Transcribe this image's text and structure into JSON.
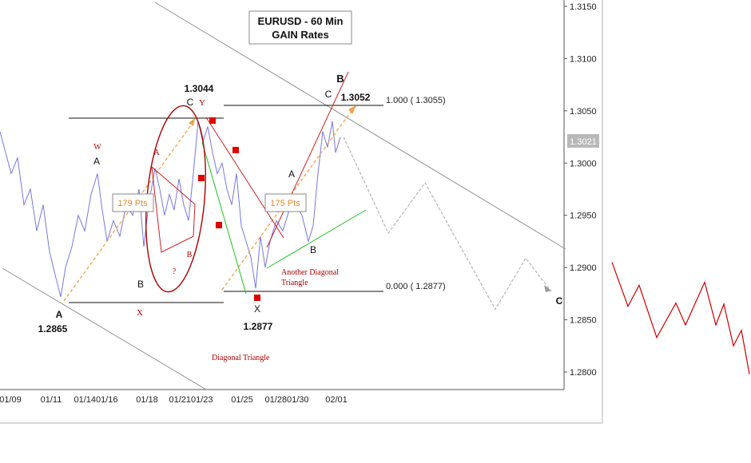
{
  "chart_data": {
    "type": "line",
    "title": "EURUSD - 60 Min",
    "subtitle": "GAIN Rates",
    "y_ticks": [
      "1.3150",
      "1.3100",
      "1.3050",
      "1.3000",
      "1.2950",
      "1.2900",
      "1.2850",
      "1.2800"
    ],
    "x_ticks": [
      "01/09",
      "01/11",
      "01/1401/16",
      "01/18",
      "01/2101/23",
      "01/25",
      "01/2801/30",
      "02/01"
    ],
    "last_price": "1.3021",
    "ylim": [
      1.277,
      1.316
    ],
    "grid": false,
    "price_series": [
      [
        0,
        1.303
      ],
      [
        14,
        1.299
      ],
      [
        22,
        1.3005
      ],
      [
        30,
        1.296
      ],
      [
        38,
        1.2975
      ],
      [
        46,
        1.2935
      ],
      [
        54,
        1.296
      ],
      [
        62,
        1.2915
      ],
      [
        70,
        1.289
      ],
      [
        76,
        1.2872
      ],
      [
        82,
        1.29
      ],
      [
        90,
        1.292
      ],
      [
        98,
        1.295
      ],
      [
        106,
        1.2935
      ],
      [
        114,
        1.297
      ],
      [
        122,
        1.299
      ],
      [
        128,
        1.2955
      ],
      [
        134,
        1.2925
      ],
      [
        142,
        1.2945
      ],
      [
        150,
        1.293
      ],
      [
        158,
        1.296
      ],
      [
        166,
        1.295
      ],
      [
        174,
        1.2975
      ],
      [
        180,
        1.292
      ],
      [
        186,
        1.296
      ],
      [
        194,
        1.2995
      ],
      [
        200,
        1.2975
      ],
      [
        206,
        1.295
      ],
      [
        212,
        1.297
      ],
      [
        218,
        1.2955
      ],
      [
        224,
        1.2985
      ],
      [
        230,
        1.296
      ],
      [
        236,
        1.2945
      ],
      [
        242,
        1.299
      ],
      [
        248,
        1.304
      ],
      [
        254,
        1.302
      ],
      [
        260,
        1.3035
      ],
      [
        266,
        1.301
      ],
      [
        272,
        1.299
      ],
      [
        278,
        1.3
      ],
      [
        284,
        1.2975
      ],
      [
        290,
        1.296
      ],
      [
        296,
        1.299
      ],
      [
        302,
        1.294
      ],
      [
        308,
        1.2925
      ],
      [
        314,
        1.291
      ],
      [
        320,
        1.288
      ],
      [
        326,
        1.293
      ],
      [
        332,
        1.29
      ],
      [
        338,
        1.2925
      ],
      [
        346,
        1.2945
      ],
      [
        354,
        1.2935
      ],
      [
        362,
        1.2955
      ],
      [
        370,
        1.296
      ],
      [
        378,
        1.295
      ],
      [
        386,
        1.2925
      ],
      [
        392,
        1.294
      ],
      [
        398,
        1.299
      ],
      [
        404,
        1.303
      ],
      [
        410,
        1.3015
      ],
      [
        416,
        1.304
      ],
      [
        420,
        1.301
      ],
      [
        426,
        1.3025
      ]
    ],
    "projection_series": [
      [
        430,
        1.3025
      ],
      [
        486,
        1.2933
      ],
      [
        532,
        1.2981
      ],
      [
        620,
        1.286
      ],
      [
        658,
        1.2909
      ],
      [
        690,
        1.2877
      ]
    ],
    "outside_series": [
      [
        766,
        1.2905
      ],
      [
        786,
        1.2863
      ],
      [
        800,
        1.2883
      ],
      [
        822,
        1.2833
      ],
      [
        846,
        1.2866
      ],
      [
        858,
        1.2845
      ],
      [
        882,
        1.2886
      ],
      [
        896,
        1.2845
      ],
      [
        906,
        1.2865
      ],
      [
        918,
        1.2825
      ],
      [
        928,
        1.284
      ],
      [
        938,
        1.2798
      ]
    ],
    "fib_levels": [
      {
        "label": "1.000 ( 1.3055)",
        "value": 1.3055
      },
      {
        "label": "0.000 ( 1.2877)",
        "value": 1.2877
      }
    ],
    "annotations": {
      "pivot_labels": [
        "1.3044",
        "1.3052",
        "1.2865",
        "1.2877"
      ],
      "black_wave_labels": [
        "A",
        "B",
        "C",
        "A",
        "B",
        "C",
        "A",
        "B",
        "X",
        "B",
        "C"
      ],
      "red_wave_labels": [
        "W",
        "Y",
        "X",
        "A",
        "B",
        "?"
      ],
      "pts_labels": [
        "179 Pts",
        "175 Pts"
      ],
      "notes": [
        "Another Diagonal Triangle",
        "Diagonal Triangle"
      ]
    },
    "colors": {
      "price": "#7777dd",
      "wave_label_red": "#aa0000",
      "trend_line_red": "#cc2020",
      "trend_line_green": "#20c020",
      "projection": "#bbbbbb",
      "outside_line": "#cc0000",
      "measure_orange": "#f0a040",
      "channel": "#909090"
    }
  }
}
